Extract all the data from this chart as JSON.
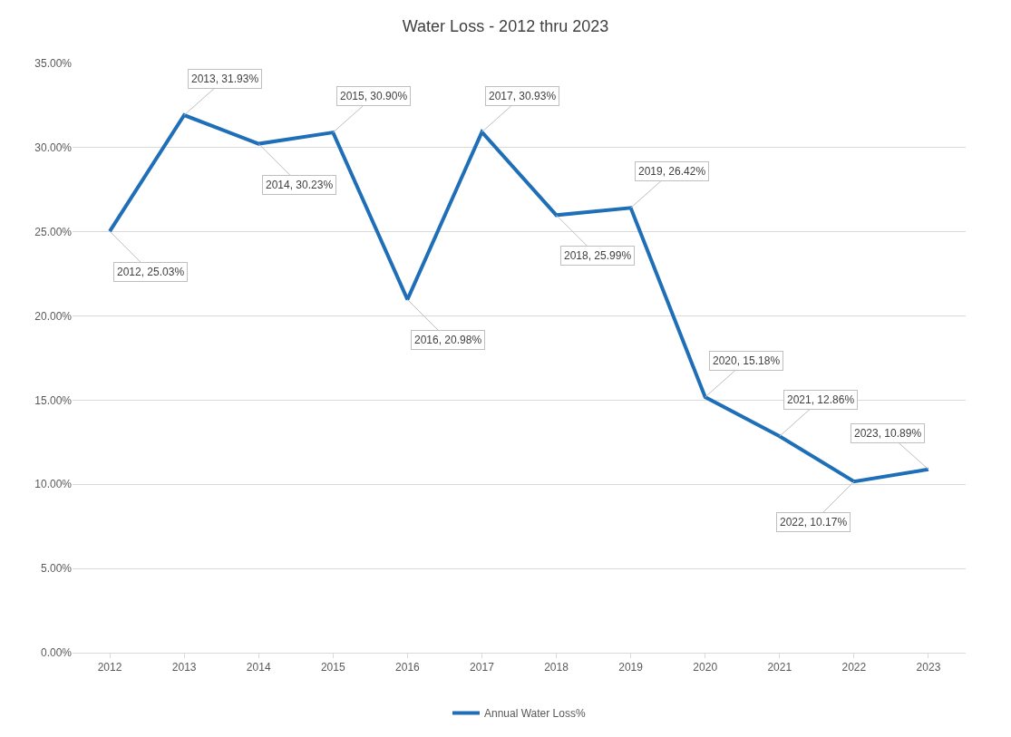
{
  "chart_data": {
    "type": "line",
    "title": "Water Loss - 2012 thru 2023",
    "categories": [
      "2012",
      "2013",
      "2014",
      "2015",
      "2016",
      "2017",
      "2018",
      "2019",
      "2020",
      "2021",
      "2022",
      "2023"
    ],
    "series": [
      {
        "name": "Annual Water Loss%",
        "color": "#1f6fb8",
        "values": [
          25.03,
          31.93,
          30.23,
          30.9,
          20.98,
          30.93,
          25.99,
          26.42,
          15.18,
          12.86,
          10.17,
          10.89
        ],
        "value_labels": [
          "2012, 25.03%",
          "2013, 31.93%",
          "2014, 30.23%",
          "2015, 30.90%",
          "2016, 20.98%",
          "2017, 30.93%",
          "2018, 25.99%",
          "2019, 26.42%",
          "2020, 15.18%",
          "2021, 12.86%",
          "2022, 10.17%",
          "2023, 10.89%"
        ]
      }
    ],
    "ylim": [
      0,
      35
    ],
    "yticks": [
      {
        "value": 0,
        "label": "0.00%"
      },
      {
        "value": 5,
        "label": "5.00%"
      },
      {
        "value": 10,
        "label": "10.00%"
      },
      {
        "value": 15,
        "label": "15.00%"
      },
      {
        "value": 20,
        "label": "20.00%"
      },
      {
        "value": 25,
        "label": "25.00%"
      },
      {
        "value": 30,
        "label": "30.00%"
      },
      {
        "value": 35,
        "label": "35.00%"
      }
    ],
    "grid": "y",
    "legend": "bottom",
    "marker": "none",
    "line_style": "solid"
  }
}
